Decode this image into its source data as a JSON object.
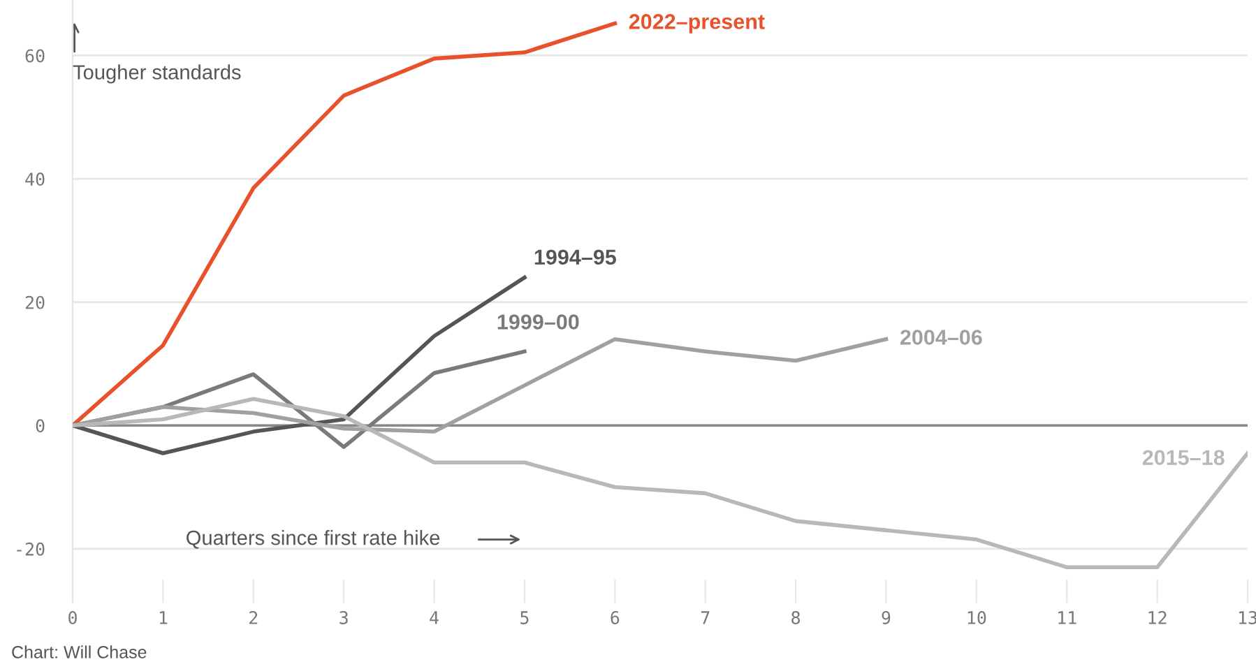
{
  "chart_data": {
    "type": "line",
    "series": [
      {
        "name": "2022–present",
        "color": "#e8512b",
        "x": [
          0,
          1,
          2,
          3,
          4,
          5,
          6
        ],
        "values": [
          0,
          13,
          38.5,
          53.5,
          59.5,
          60.5,
          65.2
        ]
      },
      {
        "name": "1994–95",
        "color": "#555555",
        "x": [
          0,
          1,
          2,
          3,
          4,
          5
        ],
        "values": [
          0,
          -4.5,
          -1,
          1,
          14.5,
          24
        ]
      },
      {
        "name": "1999–00",
        "color": "#7a7a7a",
        "x": [
          0,
          1,
          2,
          3,
          4,
          5
        ],
        "values": [
          0,
          3,
          8.3,
          -3.5,
          8.5,
          12
        ]
      },
      {
        "name": "2004–06",
        "color": "#a0a0a0",
        "x": [
          0,
          1,
          2,
          3,
          4,
          5,
          6,
          7,
          8,
          9
        ],
        "values": [
          0,
          3,
          2,
          -0.5,
          -1,
          6.5,
          14,
          12,
          10.5,
          14
        ]
      },
      {
        "name": "2015–18",
        "color": "#b8b8b8",
        "x": [
          0,
          1,
          2,
          3,
          4,
          5,
          6,
          7,
          8,
          9,
          10,
          11,
          12,
          13
        ],
        "values": [
          0,
          1,
          4.3,
          1.5,
          -6,
          -6,
          -10,
          -11,
          -15.5,
          -17,
          -18.5,
          -23,
          -23,
          -4.5
        ]
      }
    ],
    "xlim": [
      0,
      13
    ],
    "xticks": [
      0,
      1,
      2,
      3,
      4,
      5,
      6,
      7,
      8,
      9,
      10,
      11,
      12,
      13
    ],
    "ylim": [
      -25,
      69
    ],
    "yticks": [
      -20,
      0,
      20,
      40,
      60
    ],
    "grid": "y",
    "legend": false,
    "marker": "none",
    "line_style": "solid",
    "ref_lines": [
      {
        "axis": "y",
        "value": 0,
        "color": "#888888"
      }
    ],
    "annotations": [
      "Tougher standards",
      "Quarters since first rate hike",
      "Chart: Will Chase"
    ]
  }
}
